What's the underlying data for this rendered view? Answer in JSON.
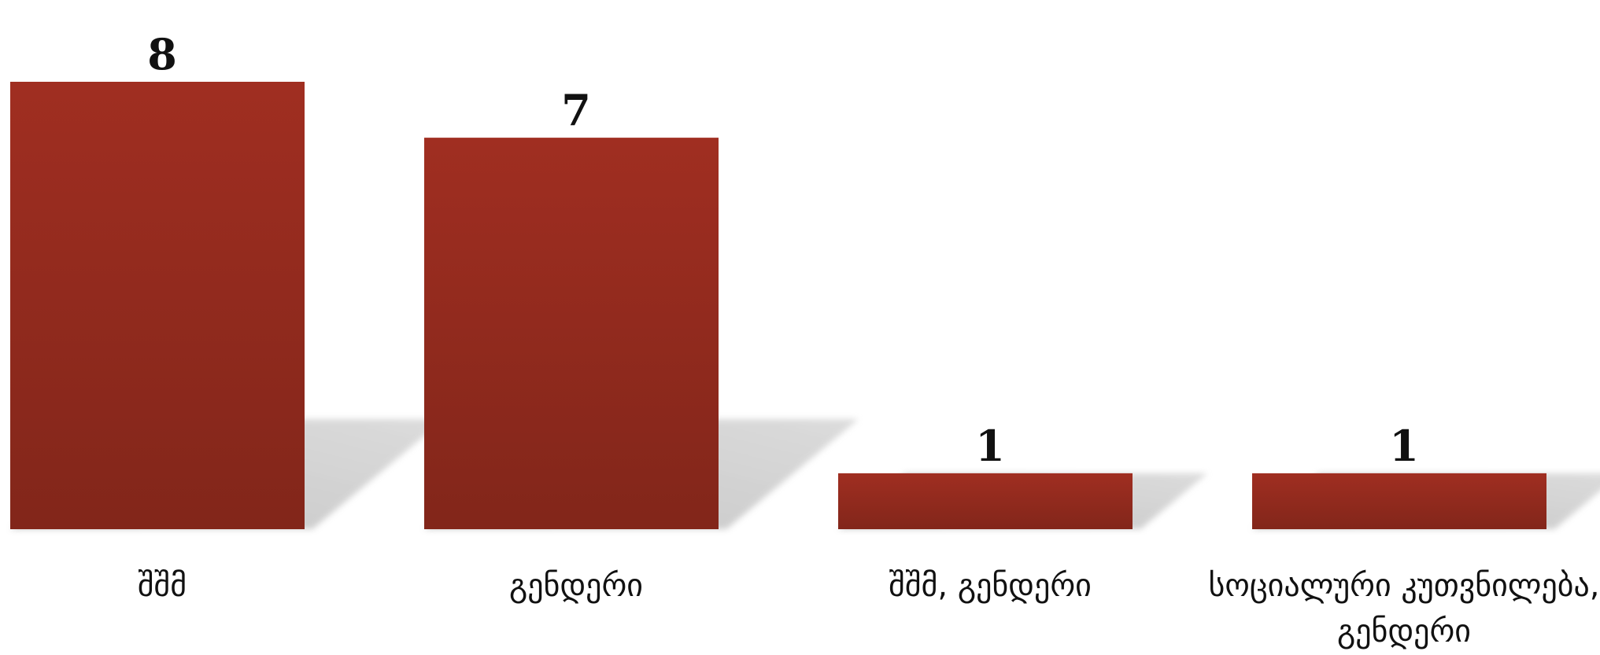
{
  "chart_data": {
    "type": "bar",
    "categories": [
      "შშმ",
      "გენდერი",
      "შშმ, გენდერი",
      "სოციალური კუთვნილება, გენდერი"
    ],
    "values": [
      8,
      7,
      1,
      1
    ],
    "color": "#9b2d20"
  }
}
